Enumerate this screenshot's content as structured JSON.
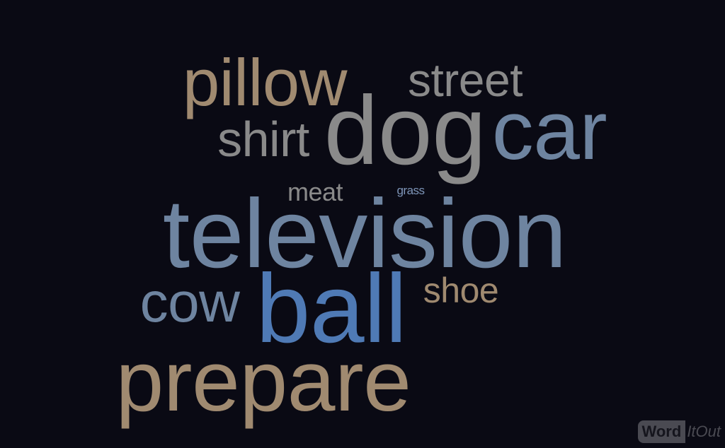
{
  "colors": {
    "background": "#0a0a14",
    "tan": "#a08a70",
    "grey": "#8a8a8a",
    "slate_blue": "#6e84a0",
    "bright_blue": "#4f7ab5",
    "small_blue": "#7e95b8"
  },
  "words": [
    {
      "text": "pillow",
      "color": "#a08a70"
    },
    {
      "text": "street",
      "color": "#8a8a8a"
    },
    {
      "text": "shirt",
      "color": "#8a8a8a"
    },
    {
      "text": "dog",
      "color": "#8a8a8a"
    },
    {
      "text": "car",
      "color": "#6e84a0"
    },
    {
      "text": "meat",
      "color": "#8a8a8a"
    },
    {
      "text": "grass",
      "color": "#7e95b8"
    },
    {
      "text": "television",
      "color": "#6e84a0"
    },
    {
      "text": "cow",
      "color": "#6e84a0"
    },
    {
      "text": "ball",
      "color": "#4f7ab5"
    },
    {
      "text": "shoe",
      "color": "#a08a70"
    },
    {
      "text": "prepare",
      "color": "#a08a70"
    }
  ],
  "logo": {
    "part1": "Word",
    "part2": "ItOut"
  }
}
